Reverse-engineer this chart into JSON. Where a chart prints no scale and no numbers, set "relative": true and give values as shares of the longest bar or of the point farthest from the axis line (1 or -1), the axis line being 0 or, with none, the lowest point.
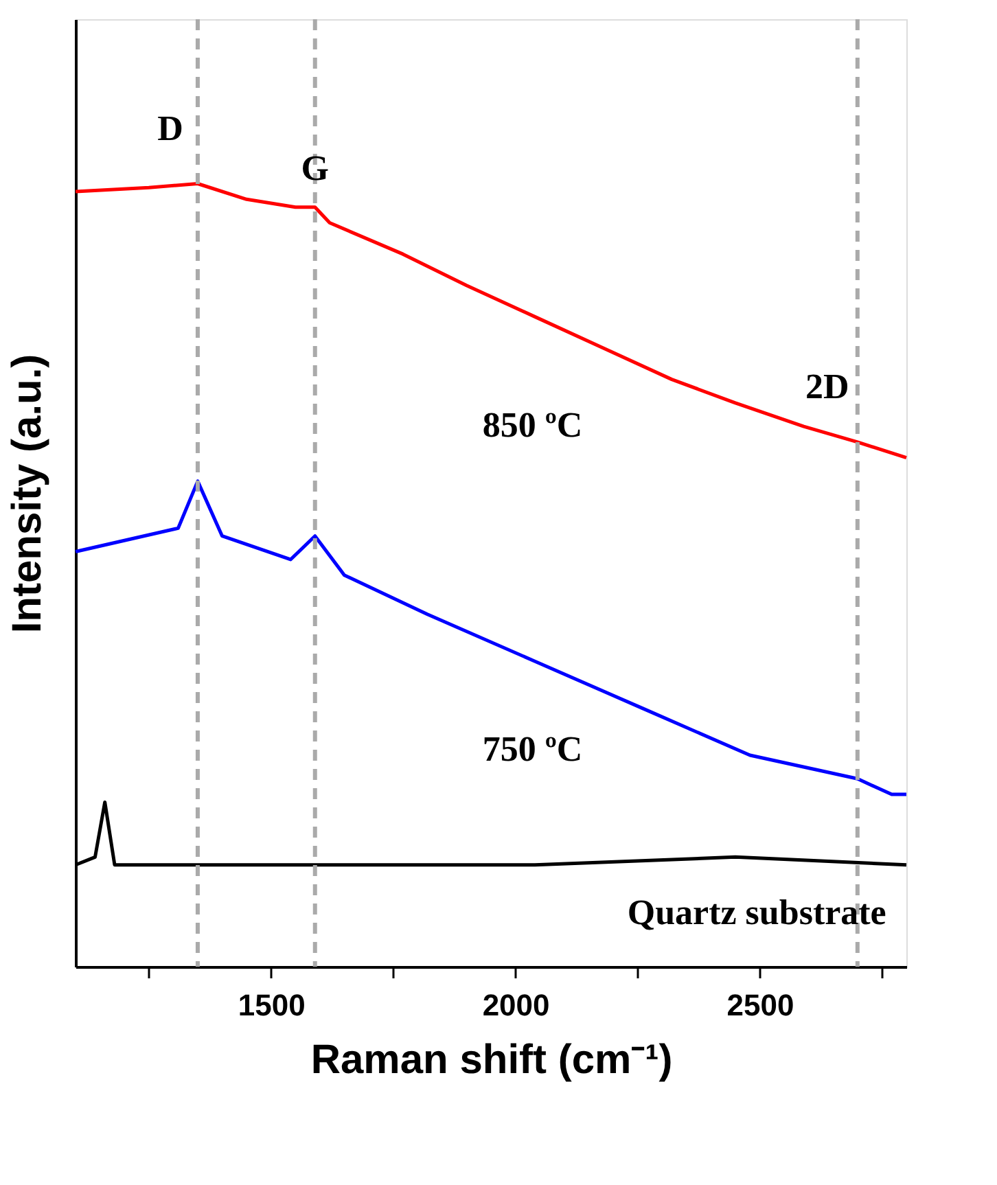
{
  "chart_data": {
    "type": "line",
    "relative": true,
    "xlabel": "Raman shift (cm⁻¹)",
    "ylabel": "Intensity (a.u.)",
    "xlim": [
      1100,
      2800
    ],
    "xticks": [
      {
        "value": 1250,
        "label": null
      },
      1500,
      {
        "value": 1750,
        "label": null
      },
      2000,
      {
        "value": 2250,
        "label": null
      },
      2500,
      {
        "value": 2750,
        "label": null
      }
    ],
    "grid": false,
    "marker": "none",
    "line_style": "solid",
    "series": [
      {
        "name": "850 ºC",
        "color": "#ff0000",
        "x": [
          1100,
          1250,
          1350,
          1450,
          1550,
          1590,
          1620,
          1770,
          1900,
          2040,
          2180,
          2320,
          2450,
          2590,
          2700,
          2800
        ],
        "values": [
          0.99,
          0.995,
          1,
          0.98,
          0.97,
          0.97,
          0.95,
          0.91,
          0.87,
          0.83,
          0.79,
          0.75,
          0.72,
          0.69,
          0.67,
          0.65
        ]
      },
      {
        "name": "750 ºC",
        "color": "#0000ff",
        "x": [
          1100,
          1310,
          1350,
          1400,
          1540,
          1590,
          1650,
          1820,
          2040,
          2260,
          2480,
          2700,
          2770,
          2800
        ],
        "values": [
          0.53,
          0.56,
          0.62,
          0.55,
          0.52,
          0.55,
          0.5,
          0.45,
          0.39,
          0.33,
          0.27,
          0.24,
          0.22,
          0.22
        ]
      },
      {
        "name": "Quartz substrate",
        "color": "#000000",
        "x": [
          1100,
          1140,
          1160,
          1180,
          1490,
          1770,
          2040,
          2450,
          2800
        ],
        "values": [
          0.13,
          0.14,
          0.21,
          0.13,
          0.13,
          0.13,
          0.13,
          0.14,
          0.13
        ]
      }
    ],
    "ref_lines": [
      {
        "axis": "x",
        "value": 1350,
        "label": "D",
        "color": "#aaaaaa",
        "line_style": "dashed"
      },
      {
        "axis": "x",
        "value": 1590,
        "label": "G",
        "color": "#aaaaaa",
        "line_style": "dashed"
      },
      {
        "axis": "x",
        "value": 2700,
        "label": "2D",
        "color": "#aaaaaa",
        "line_style": "dashed"
      }
    ]
  }
}
